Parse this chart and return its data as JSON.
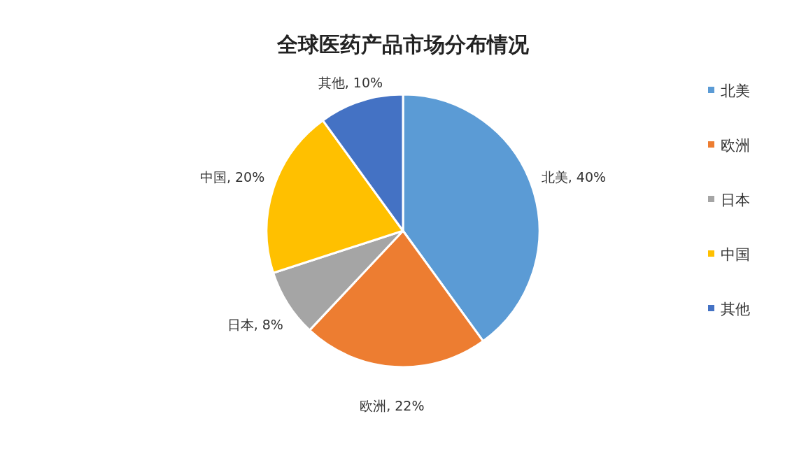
{
  "chart_data": {
    "type": "pie",
    "title": "全球医药产品市场分布情况",
    "categories": [
      "北美",
      "欧洲",
      "日本",
      "中国",
      "其他"
    ],
    "values": [
      40,
      22,
      8,
      20,
      10
    ],
    "colors": [
      "#5b9bd5",
      "#ed7d31",
      "#a5a5a5",
      "#ffc000",
      "#4472c4"
    ],
    "value_labels": [
      "北美, 40%",
      "欧洲, 22%",
      "日本, 8%",
      "中国, 20%",
      "其他, 10%"
    ],
    "legend": "right"
  }
}
